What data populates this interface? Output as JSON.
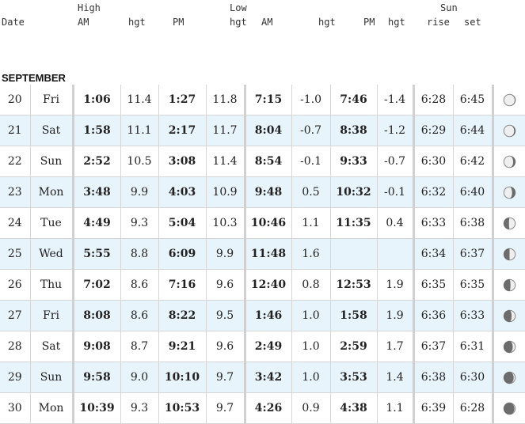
{
  "header": {
    "date": "Date",
    "high": "High",
    "high_am": "AM",
    "high_am_hgt": "hgt",
    "high_pm": "PM",
    "low": "Low",
    "high_pm_hgt": "hgt",
    "low_am": "AM",
    "low_am_hgt": "hgt",
    "low_pm": "PM",
    "low_pm_hgt": "hgt",
    "sun": "Sun",
    "sun_rise": "rise",
    "sun_set": "set"
  },
  "month": "SEPTEMBER",
  "rows": [
    {
      "date": "20",
      "day": "Fri",
      "high_am": "1:06",
      "high_am_hgt": "11.4",
      "high_pm": "1:27",
      "high_pm_hgt": "11.8",
      "low_am": "7:15",
      "low_am_hgt": "-1.0",
      "low_pm": "7:46",
      "low_pm_hgt": "-1.4",
      "rise": "6:28",
      "set": "6:45",
      "moon": "waning-gibbous-icon",
      "moon_lit": 0.95,
      "moon_dark_side": "right"
    },
    {
      "date": "21",
      "day": "Sat",
      "high_am": "1:58",
      "high_am_hgt": "11.1",
      "high_pm": "2:17",
      "high_pm_hgt": "11.7",
      "low_am": "8:04",
      "low_am_hgt": "-0.7",
      "low_pm": "8:38",
      "low_pm_hgt": "-1.2",
      "rise": "6:29",
      "set": "6:44",
      "moon": "waning-gibbous-icon",
      "moon_lit": 0.9,
      "moon_dark_side": "right"
    },
    {
      "date": "22",
      "day": "Sun",
      "high_am": "2:52",
      "high_am_hgt": "10.5",
      "high_pm": "3:08",
      "high_pm_hgt": "11.4",
      "low_am": "8:54",
      "low_am_hgt": "-0.1",
      "low_pm": "9:33",
      "low_pm_hgt": "-0.7",
      "rise": "6:30",
      "set": "6:42",
      "moon": "waning-gibbous-icon",
      "moon_lit": 0.82,
      "moon_dark_side": "right"
    },
    {
      "date": "23",
      "day": "Mon",
      "high_am": "3:48",
      "high_am_hgt": "9.9",
      "high_pm": "4:03",
      "high_pm_hgt": "10.9",
      "low_am": "9:48",
      "low_am_hgt": "0.5",
      "low_pm": "10:32",
      "low_pm_hgt": "-0.1",
      "rise": "6:32",
      "set": "6:40",
      "moon": "waning-gibbous-icon",
      "moon_lit": 0.72,
      "moon_dark_side": "right"
    },
    {
      "date": "24",
      "day": "Tue",
      "high_am": "4:49",
      "high_am_hgt": "9.3",
      "high_pm": "5:04",
      "high_pm_hgt": "10.3",
      "low_am": "10:46",
      "low_am_hgt": "1.1",
      "low_pm": "11:35",
      "low_pm_hgt": "0.4",
      "rise": "6:33",
      "set": "6:38",
      "moon": "last-quarter-icon",
      "moon_lit": 0.55,
      "moon_dark_side": "left"
    },
    {
      "date": "25",
      "day": "Wed",
      "high_am": "5:55",
      "high_am_hgt": "8.8",
      "high_pm": "6:09",
      "high_pm_hgt": "9.9",
      "low_am": "11:48",
      "low_am_hgt": "1.6",
      "low_pm": "",
      "low_pm_hgt": "",
      "rise": "6:34",
      "set": "6:37",
      "moon": "last-quarter-icon",
      "moon_lit": 0.5,
      "moon_dark_side": "left"
    },
    {
      "date": "26",
      "day": "Thu",
      "high_am": "7:02",
      "high_am_hgt": "8.6",
      "high_pm": "7:16",
      "high_pm_hgt": "9.6",
      "low_am": "12:40",
      "low_am_hgt": "0.8",
      "low_pm": "12:53",
      "low_pm_hgt": "1.9",
      "rise": "6:35",
      "set": "6:35",
      "moon": "waning-crescent-icon",
      "moon_lit": 0.42,
      "moon_dark_side": "left"
    },
    {
      "date": "27",
      "day": "Fri",
      "high_am": "8:08",
      "high_am_hgt": "8.6",
      "high_pm": "8:22",
      "high_pm_hgt": "9.5",
      "low_am": "1:46",
      "low_am_hgt": "1.0",
      "low_pm": "1:58",
      "low_pm_hgt": "1.9",
      "rise": "6:36",
      "set": "6:33",
      "moon": "waning-crescent-icon",
      "moon_lit": 0.32,
      "moon_dark_side": "left"
    },
    {
      "date": "28",
      "day": "Sat",
      "high_am": "9:08",
      "high_am_hgt": "8.7",
      "high_pm": "9:21",
      "high_pm_hgt": "9.6",
      "low_am": "2:49",
      "low_am_hgt": "1.0",
      "low_pm": "2:59",
      "low_pm_hgt": "1.7",
      "rise": "6:37",
      "set": "6:31",
      "moon": "waning-crescent-icon",
      "moon_lit": 0.22,
      "moon_dark_side": "left"
    },
    {
      "date": "29",
      "day": "Sun",
      "high_am": "9:58",
      "high_am_hgt": "9.0",
      "high_pm": "10:10",
      "high_pm_hgt": "9.7",
      "low_am": "3:42",
      "low_am_hgt": "1.0",
      "low_pm": "3:53",
      "low_pm_hgt": "1.4",
      "rise": "6:38",
      "set": "6:30",
      "moon": "waning-crescent-icon",
      "moon_lit": 0.14,
      "moon_dark_side": "left"
    },
    {
      "date": "30",
      "day": "Mon",
      "high_am": "10:39",
      "high_am_hgt": "9.3",
      "high_pm": "10:53",
      "high_pm_hgt": "9.7",
      "low_am": "4:26",
      "low_am_hgt": "0.9",
      "low_pm": "4:38",
      "low_pm_hgt": "1.1",
      "rise": "6:39",
      "set": "6:28",
      "moon": "waning-crescent-icon",
      "moon_lit": 0.08,
      "moon_dark_side": "left"
    }
  ]
}
